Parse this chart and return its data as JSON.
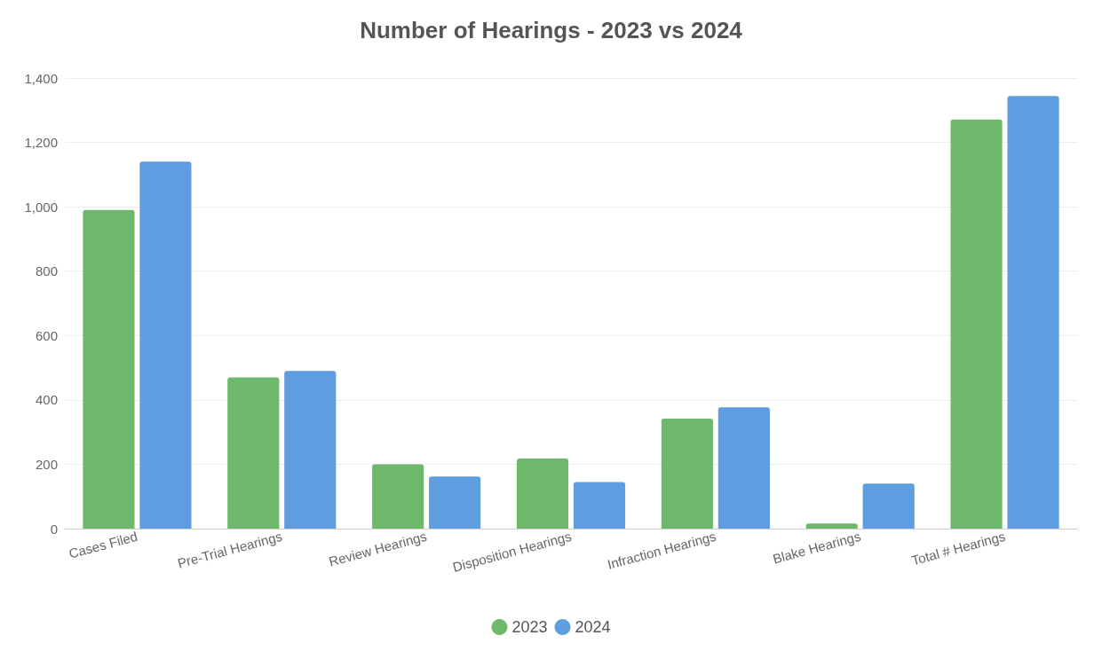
{
  "chart_data": {
    "type": "bar",
    "title": "Number of Hearings - 2023 vs 2024",
    "categories": [
      "Cases Filed",
      "Pre-Trial Hearings",
      "Review Hearings",
      "Disposition Hearings",
      "Infraction Hearings",
      "Blake Hearings",
      "Total # Hearings"
    ],
    "series": [
      {
        "name": "2023",
        "color": "#6db86a",
        "values": [
          990,
          470,
          200,
          218,
          342,
          16,
          1271
        ]
      },
      {
        "name": "2024",
        "color": "#5e9de0",
        "values": [
          1140,
          490,
          162,
          145,
          377,
          140,
          1344
        ]
      }
    ],
    "ylim": [
      0,
      1400
    ],
    "yticks": [
      0,
      200,
      400,
      600,
      800,
      {
        "value": 1000,
        "label": "1,000"
      },
      {
        "value": 1200,
        "label": "1,200"
      },
      {
        "value": 1400,
        "label": "1,400"
      }
    ],
    "grid": "y",
    "legend": "bottom"
  }
}
